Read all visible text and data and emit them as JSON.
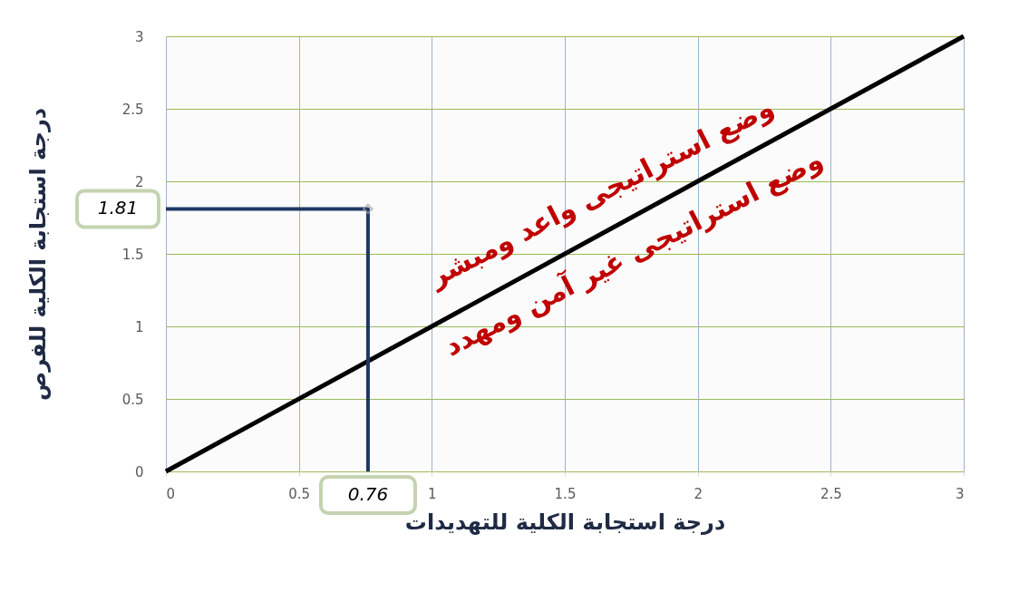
{
  "chart_data": {
    "type": "line",
    "xlabel": "درجة استجابة الكلية للتهديدات",
    "ylabel": "درجة استجابة الكلية للفرص",
    "xlim": [
      0,
      3
    ],
    "ylim": [
      0,
      3
    ],
    "xticks": [
      0,
      0.5,
      1,
      1.5,
      2,
      2.5,
      3
    ],
    "yticks": [
      0,
      0.5,
      1,
      1.5,
      2,
      2.5,
      3
    ],
    "grid": true,
    "series": [
      {
        "color": "#000000",
        "x": [
          0,
          3
        ],
        "values": [
          0,
          3
        ]
      },
      {
        "color": "#1f3864",
        "x": [
          0,
          0.76,
          0.76
        ],
        "values": [
          1.81,
          1.81,
          0
        ]
      },
      {
        "type": "scatter",
        "color": "#a6a6a6",
        "marker": "diamond",
        "x": [
          0.76
        ],
        "values": [
          1.81
        ]
      }
    ],
    "annotations": [
      {
        "text": "1.81",
        "x": 0,
        "y": 1.81
      },
      {
        "text": "0.76",
        "x": 0.76,
        "y": 0
      },
      "وضع استراتيجى واعد ومبشر",
      "وضع استراتيجى غير آمن ومهدد"
    ]
  }
}
